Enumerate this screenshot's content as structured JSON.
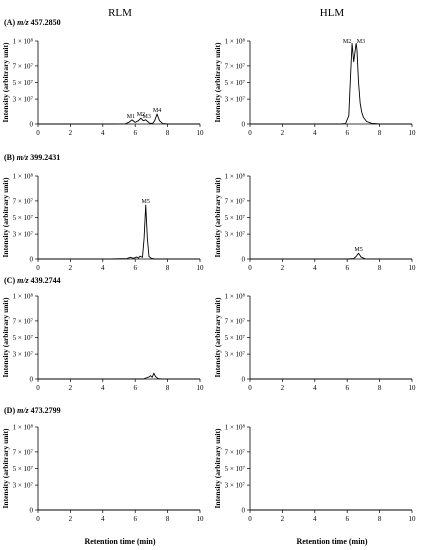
{
  "columns": [
    "RLM",
    "HLM"
  ],
  "y_axis_title": "Intensity (arbitrary unit)",
  "x_axis_title": "Retention time (min)",
  "chart_data": [
    {
      "type": "line",
      "row": "(A)",
      "mz_prefix": "m/z",
      "mz_value": "457.2850",
      "column": "RLM",
      "xlim": [
        0,
        10
      ],
      "ylim": [
        0,
        100000000
      ],
      "xticks": [
        "0",
        "2",
        "4",
        "6",
        "8",
        "10"
      ],
      "yticks": [
        "0",
        "3 × 10⁷",
        "5 × 10⁷",
        "7 × 10⁷",
        "1 × 10⁸"
      ],
      "series": [
        {
          "x": [
            0,
            4.5,
            5.4,
            5.6,
            5.8,
            6.0,
            6.2,
            6.35,
            6.5,
            6.65,
            6.9,
            7.1,
            7.2,
            7.35,
            7.5,
            7.7,
            8.0,
            10
          ],
          "y": [
            0,
            0,
            200000,
            2000000,
            5000000,
            2000000,
            4000000,
            7000000,
            4000000,
            5000000,
            800000,
            1000000,
            4000000,
            12000000,
            4000000,
            500000,
            0,
            0
          ]
        }
      ],
      "annotations": [
        {
          "label": "M1",
          "x": 5.8,
          "y": 5000000
        },
        {
          "label": "M2",
          "x": 6.35,
          "y": 7000000
        },
        {
          "label": "M3",
          "x": 6.65,
          "y": 5000000
        },
        {
          "label": "M4",
          "x": 7.35,
          "y": 12000000
        }
      ]
    },
    {
      "type": "line",
      "row": "(A)",
      "mz_prefix": "m/z",
      "mz_value": "457.2850",
      "column": "HLM",
      "xlim": [
        0,
        10
      ],
      "ylim": [
        0,
        100000000
      ],
      "xticks": [
        "0",
        "2",
        "4",
        "6",
        "8",
        "10"
      ],
      "yticks": [
        "0",
        "3 × 10⁷",
        "5 × 10⁷",
        "7 × 10⁷",
        "1 × 10⁸"
      ],
      "series": [
        {
          "x": [
            0,
            5.6,
            5.9,
            6.1,
            6.2,
            6.3,
            6.4,
            6.55,
            6.6,
            6.7,
            6.8,
            6.9,
            7.0,
            7.2,
            7.5,
            8.0,
            10
          ],
          "y": [
            0,
            0,
            500000,
            10000000,
            55000000,
            97000000,
            75000000,
            97000000,
            90000000,
            50000000,
            25000000,
            14000000,
            8000000,
            3000000,
            800000,
            0,
            0
          ]
        }
      ],
      "annotations": [
        {
          "label": "M2",
          "x": 6.3,
          "y": 97000000
        },
        {
          "label": "M3",
          "x": 6.6,
          "y": 97000000
        }
      ]
    },
    {
      "type": "line",
      "row": "(B)",
      "mz_prefix": "m/z",
      "mz_value": "399.2431",
      "column": "RLM",
      "xlim": [
        0,
        10
      ],
      "ylim": [
        0,
        100000000
      ],
      "xticks": [
        "0",
        "2",
        "4",
        "6",
        "8",
        "10"
      ],
      "yticks": [
        "0",
        "3 × 10⁷",
        "5 × 10⁷",
        "7 × 10⁷",
        "1 × 10⁸"
      ],
      "series": [
        {
          "x": [
            0,
            4.5,
            5.5,
            5.7,
            5.9,
            6.1,
            6.2,
            6.3,
            6.45,
            6.55,
            6.65,
            6.75,
            6.85,
            7.0,
            7.2,
            8.0,
            10
          ],
          "y": [
            0,
            0,
            500000,
            2000000,
            800000,
            2500000,
            1000000,
            3500000,
            2000000,
            25000000,
            65000000,
            25000000,
            3000000,
            800000,
            0,
            0,
            0
          ]
        }
      ],
      "annotations": [
        {
          "label": "M5",
          "x": 6.65,
          "y": 65000000
        }
      ]
    },
    {
      "type": "line",
      "row": "(B)",
      "mz_prefix": "m/z",
      "mz_value": "399.2431",
      "column": "HLM",
      "xlim": [
        0,
        10
      ],
      "ylim": [
        0,
        100000000
      ],
      "xticks": [
        "0",
        "2",
        "4",
        "6",
        "8",
        "10"
      ],
      "yticks": [
        "0",
        "3 × 10⁷",
        "5 × 10⁷",
        "7 × 10⁷",
        "1 × 10⁸"
      ],
      "series": [
        {
          "x": [
            0,
            6.0,
            6.4,
            6.55,
            6.7,
            6.85,
            7.1,
            8.0,
            10
          ],
          "y": [
            0,
            0,
            500000,
            3000000,
            7000000,
            2500000,
            200000,
            0,
            0
          ]
        }
      ],
      "annotations": [
        {
          "label": "M5",
          "x": 6.7,
          "y": 7000000
        }
      ]
    },
    {
      "type": "line",
      "row": "(C)",
      "mz_prefix": "m/z",
      "mz_value": "439.2744",
      "column": "RLM",
      "xlim": [
        0,
        10
      ],
      "ylim": [
        0,
        100000000
      ],
      "xticks": [
        "0",
        "2",
        "4",
        "6",
        "8",
        "10"
      ],
      "yticks": [
        "0",
        "3 × 10⁷",
        "5 × 10⁷",
        "7 × 10⁷",
        "1 × 10⁸"
      ],
      "series": [
        {
          "x": [
            0,
            6.5,
            6.7,
            6.85,
            6.95,
            7.05,
            7.15,
            7.25,
            7.4,
            7.6,
            10
          ],
          "y": [
            0,
            0,
            1500000,
            2500000,
            4000000,
            2000000,
            7000000,
            3000000,
            500000,
            0,
            0
          ]
        }
      ],
      "annotations": []
    },
    {
      "type": "line",
      "row": "(C)",
      "mz_prefix": "m/z",
      "mz_value": "439.2744",
      "column": "HLM",
      "xlim": [
        0,
        10
      ],
      "ylim": [
        0,
        100000000
      ],
      "xticks": [
        "0",
        "2",
        "4",
        "6",
        "8",
        "10"
      ],
      "yticks": [
        "0",
        "3 × 10⁷",
        "5 × 10⁷",
        "7 × 10⁷",
        "1 × 10⁸"
      ],
      "series": [
        {
          "x": [
            0,
            10
          ],
          "y": [
            0,
            0
          ]
        }
      ],
      "annotations": []
    },
    {
      "type": "line",
      "row": "(D)",
      "mz_prefix": "m/z",
      "mz_value": "473.2799",
      "column": "RLM",
      "xlim": [
        0,
        10
      ],
      "ylim": [
        0,
        100000000
      ],
      "xticks": [
        "0",
        "2",
        "4",
        "6",
        "8",
        "10"
      ],
      "yticks": [
        "0",
        "3 × 10⁷",
        "5 × 10⁷",
        "7 × 10⁷",
        "1 × 10⁸"
      ],
      "series": [
        {
          "x": [
            0,
            10
          ],
          "y": [
            0,
            0
          ]
        }
      ],
      "annotations": []
    },
    {
      "type": "line",
      "row": "(D)",
      "mz_prefix": "m/z",
      "mz_value": "473.2799",
      "column": "HLM",
      "xlim": [
        0,
        10
      ],
      "ylim": [
        0,
        100000000
      ],
      "xticks": [
        "0",
        "2",
        "4",
        "6",
        "8",
        "10"
      ],
      "yticks": [
        "0",
        "3 × 10⁷",
        "5 × 10⁷",
        "7 × 10⁷",
        "1 × 10⁸"
      ],
      "series": [
        {
          "x": [
            0,
            10
          ],
          "y": [
            0,
            0
          ]
        }
      ],
      "annotations": []
    }
  ]
}
